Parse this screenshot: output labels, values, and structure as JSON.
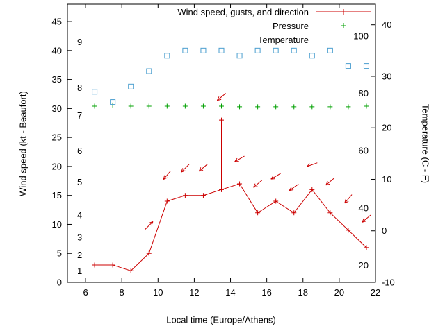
{
  "chart_data": {
    "type": "line",
    "title": "",
    "xlabel": "Local time (Europe/Athens)",
    "ylabel_left": "Wind speed (kt - Beaufort)",
    "ylabel_right": "Temperature (C - F)",
    "xlim": [
      5,
      22
    ],
    "x_ticks": [
      6,
      8,
      10,
      12,
      14,
      16,
      18,
      20,
      22
    ],
    "ylim_left": [
      0,
      48
    ],
    "y_ticks_left": [
      0,
      5,
      10,
      15,
      20,
      25,
      30,
      35,
      40,
      45
    ],
    "ylim_right": [
      -10,
      44
    ],
    "y_ticks_right": [
      -10,
      0,
      10,
      20,
      30,
      40
    ],
    "grid": false,
    "legend_position": "top-right-inside",
    "legend_entries": [
      {
        "label": "Wind speed, gusts, and direction",
        "series_key": "wind_speed",
        "marker": "line-with-plus"
      },
      {
        "label": "Pressure",
        "series_key": "pressure",
        "marker": "plus"
      },
      {
        "label": "Temperature",
        "series_key": "temperature",
        "marker": "open-square"
      }
    ],
    "beaufort_scale_labels": [
      {
        "text": "1",
        "kt": 2
      },
      {
        "text": "2",
        "kt": 4.7
      },
      {
        "text": "3",
        "kt": 7.8
      },
      {
        "text": "4",
        "kt": 11.6
      },
      {
        "text": "5",
        "kt": 17.3
      },
      {
        "text": "6",
        "kt": 22.7
      },
      {
        "text": "7",
        "kt": 28.8
      },
      {
        "text": "8",
        "kt": 33.6
      },
      {
        "text": "9",
        "kt": 41.5
      }
    ],
    "fahrenheit_scale_labels": [
      {
        "text": "20",
        "c": -6.7
      },
      {
        "text": "40",
        "c": 4.4
      },
      {
        "text": "60",
        "c": 15.6
      },
      {
        "text": "80",
        "c": 26.7
      },
      {
        "text": "100",
        "c": 37.8
      }
    ],
    "x_hours": [
      6.5,
      7.5,
      8.5,
      9.5,
      10.5,
      11.5,
      12.5,
      13.5,
      14.5,
      15.5,
      16.5,
      17.5,
      18.5,
      19.5,
      20.5,
      21.5
    ],
    "series": [
      {
        "key": "wind_speed",
        "name": "Wind speed (kt)",
        "plotted_on": "left",
        "color": "#cc0000",
        "values": [
          3,
          3,
          2,
          5,
          14,
          15,
          15,
          16,
          17,
          12,
          14,
          12,
          16,
          12,
          9,
          6
        ]
      },
      {
        "key": "wind_gust",
        "name": "Wind gust (kt)",
        "plotted_on": "left",
        "color": "#cc0000",
        "values": [
          null,
          null,
          null,
          null,
          null,
          null,
          null,
          28,
          null,
          null,
          null,
          null,
          null,
          null,
          null,
          null
        ]
      },
      {
        "key": "pressure",
        "name": "Pressure",
        "plotted_on": "left",
        "color": "#00a000",
        "values": [
          30.4,
          30.6,
          30.4,
          30.4,
          30.4,
          30.4,
          30.4,
          30.4,
          30.3,
          30.3,
          30.3,
          30.3,
          30.3,
          30.3,
          30.3,
          30.4
        ]
      },
      {
        "key": "temperature",
        "name": "Temperature (C)",
        "plotted_on": "right",
        "color": "#4a9ecf",
        "values": [
          27,
          25,
          28,
          31,
          34,
          35,
          35,
          35,
          34,
          35,
          35,
          35,
          34,
          35,
          32,
          32
        ]
      }
    ],
    "wind_direction_arrows": [
      {
        "x": 9.5,
        "kt": 9.8,
        "angle_deg": -45
      },
      {
        "x": 10.5,
        "kt": 18.5,
        "angle_deg": 130
      },
      {
        "x": 11.5,
        "kt": 19.7,
        "angle_deg": 135
      },
      {
        "x": 12.5,
        "kt": 19.8,
        "angle_deg": 140
      },
      {
        "x": 13.5,
        "kt": 32.0,
        "angle_deg": 140
      },
      {
        "x": 14.5,
        "kt": 21.3,
        "angle_deg": 150
      },
      {
        "x": 15.5,
        "kt": 17.0,
        "angle_deg": 140
      },
      {
        "x": 16.5,
        "kt": 18.3,
        "angle_deg": 150
      },
      {
        "x": 17.5,
        "kt": 16.4,
        "angle_deg": 145
      },
      {
        "x": 18.5,
        "kt": 20.3,
        "angle_deg": 160
      },
      {
        "x": 19.5,
        "kt": 17.4,
        "angle_deg": 140
      },
      {
        "x": 20.5,
        "kt": 14.4,
        "angle_deg": 130
      },
      {
        "x": 21.5,
        "kt": 11.0,
        "angle_deg": 140
      }
    ]
  }
}
